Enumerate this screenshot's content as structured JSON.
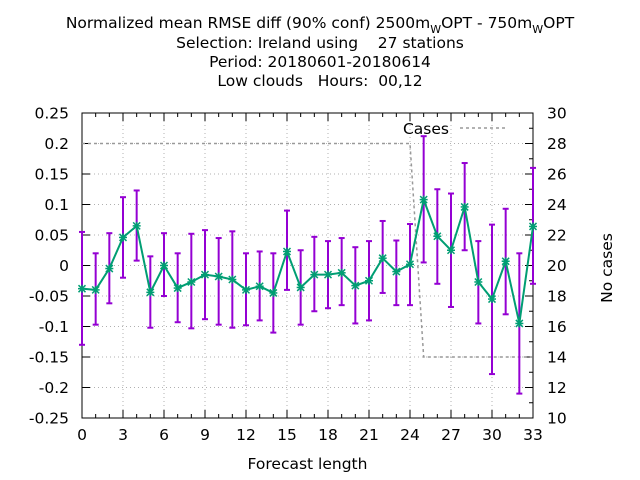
{
  "title": {
    "line1_parts": [
      "Normalized mean RMSE diff (90% conf) 2500m",
      "W",
      "OPT - 750m",
      "W",
      "OPT"
    ],
    "line2": "Selection: Ireland using    27 stations",
    "line3": "Period: 20180601-20180614",
    "line4": "Low clouds   Hours:  00,12"
  },
  "chart_data": {
    "type": "line",
    "xlabel": "Forecast length",
    "ylabel_right": "No cases",
    "x_ticks": [
      0,
      3,
      6,
      9,
      12,
      15,
      18,
      21,
      24,
      27,
      30,
      33
    ],
    "y_ticks": [
      "0.25",
      "0.2",
      "0.15",
      "0.1",
      "0.05",
      "0",
      "-0.05",
      "-0.1",
      "-0.15",
      "-0.2",
      "-0.25"
    ],
    "y2_ticks": [
      "30",
      "28",
      "26",
      "24",
      "22",
      "20",
      "18",
      "16",
      "14",
      "12",
      "10"
    ],
    "xlim": [
      0,
      33
    ],
    "ylim": [
      -0.25,
      0.25
    ],
    "y2lim": [
      10,
      30
    ],
    "legend": "Cases",
    "legend_position": "top-right",
    "colors": {
      "errorbar": "#9400d3",
      "line": "#009e73",
      "cases": "#999999",
      "grid": "#b0b0b0"
    },
    "series": {
      "x": [
        0,
        1,
        2,
        3,
        4,
        5,
        6,
        7,
        8,
        9,
        10,
        11,
        12,
        13,
        14,
        15,
        16,
        17,
        18,
        19,
        20,
        21,
        22,
        23,
        24,
        25,
        26,
        27,
        28,
        29,
        30,
        31,
        32,
        33
      ],
      "mean": [
        -0.038,
        -0.04,
        -0.005,
        0.046,
        0.065,
        -0.044,
        0.0,
        -0.037,
        -0.027,
        -0.015,
        -0.018,
        -0.023,
        -0.04,
        -0.034,
        -0.045,
        0.023,
        -0.036,
        -0.015,
        -0.015,
        -0.012,
        -0.033,
        -0.025,
        0.012,
        -0.01,
        0.002,
        0.108,
        0.048,
        0.025,
        0.096,
        -0.027,
        -0.055,
        0.007,
        -0.095,
        0.064
      ],
      "upper": [
        0.055,
        0.02,
        0.053,
        0.112,
        0.123,
        0.015,
        0.053,
        0.02,
        0.052,
        0.058,
        0.045,
        0.056,
        0.02,
        0.023,
        0.02,
        0.09,
        0.025,
        0.047,
        0.04,
        0.045,
        0.03,
        0.04,
        0.073,
        0.041,
        0.068,
        0.212,
        0.125,
        0.118,
        0.168,
        0.04,
        0.067,
        0.093,
        0.02,
        0.16
      ],
      "lower": [
        -0.13,
        -0.097,
        -0.062,
        -0.02,
        0.008,
        -0.102,
        -0.05,
        -0.093,
        -0.103,
        -0.088,
        -0.097,
        -0.102,
        -0.098,
        -0.09,
        -0.11,
        -0.04,
        -0.097,
        -0.075,
        -0.07,
        -0.065,
        -0.095,
        -0.09,
        -0.045,
        -0.065,
        -0.065,
        0.005,
        -0.03,
        -0.068,
        0.025,
        -0.095,
        -0.178,
        -0.08,
        -0.21,
        -0.03
      ]
    },
    "cases": {
      "x": [
        0,
        24,
        25,
        33
      ],
      "values": [
        28,
        28,
        14,
        14
      ]
    }
  }
}
